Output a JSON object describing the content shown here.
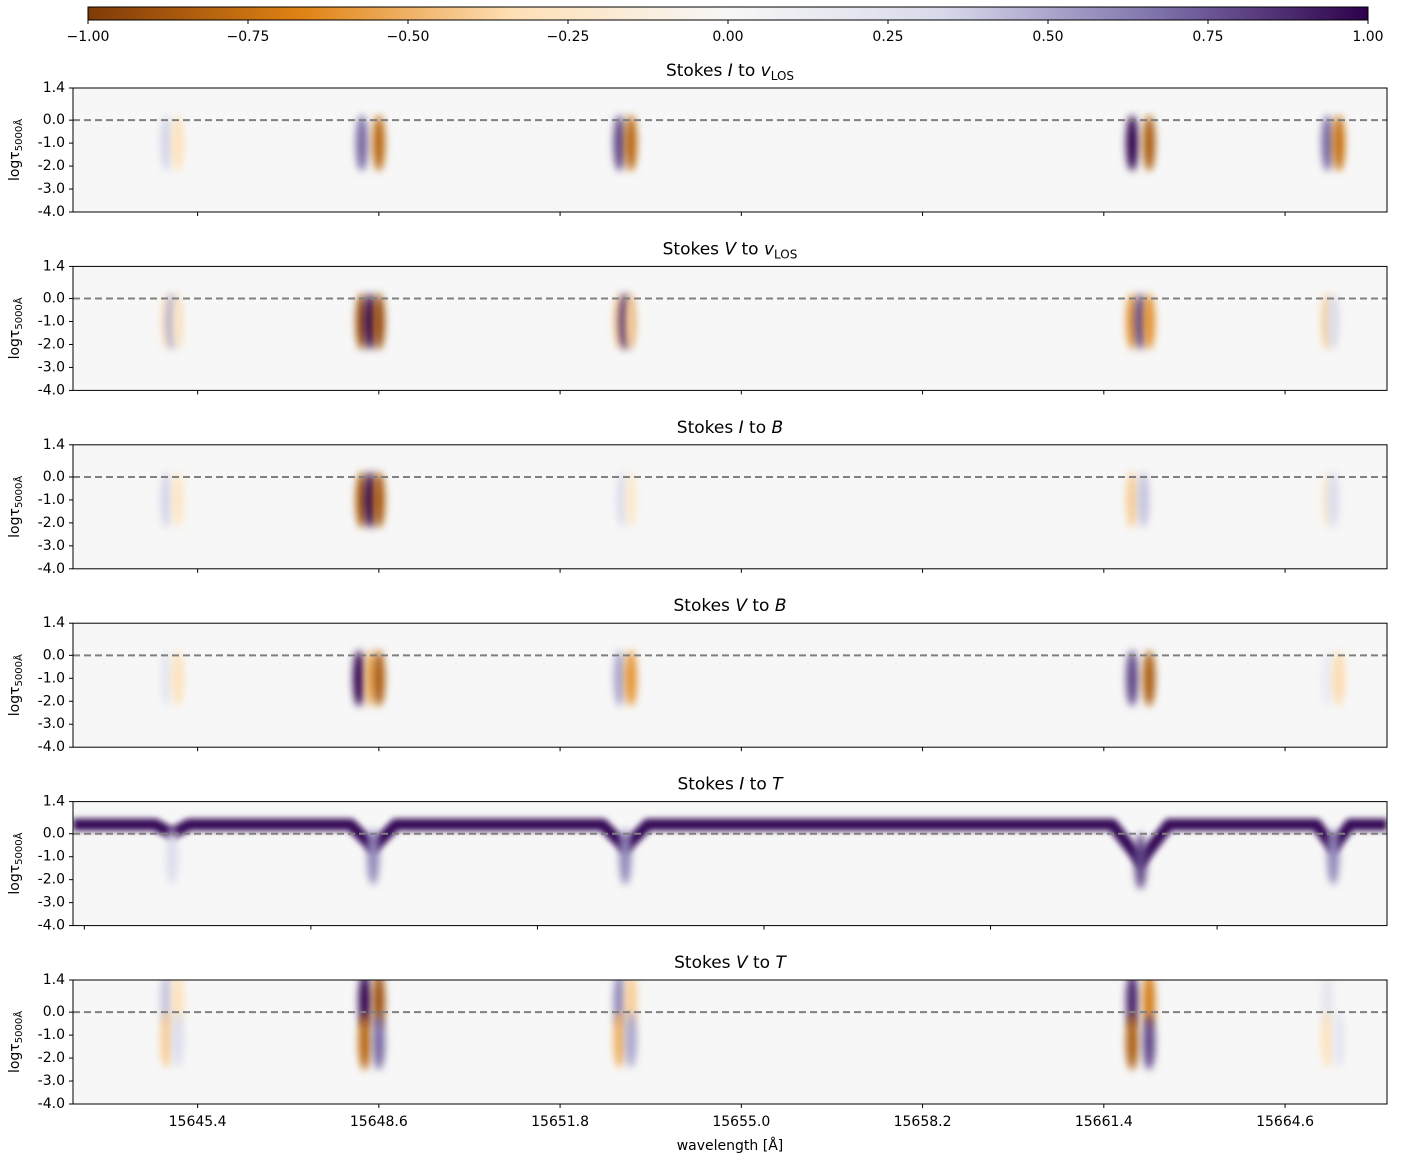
{
  "chart_data": [
    {
      "type": "colorbar",
      "zlim": [
        -1,
        1
      ],
      "colors": [
        "#7f3b08",
        "#e08214",
        "#fee0b6",
        "#f7f7f7",
        "#d8daeb",
        "#8073ac",
        "#2d004b"
      ],
      "ticks": [
        {
          "value": -1,
          "label": "−1.00"
        },
        {
          "value": -0.75,
          "label": "−0.75"
        },
        {
          "value": -0.5,
          "label": "−0.50"
        },
        {
          "value": -0.25,
          "label": "−0.25"
        },
        {
          "value": 0,
          "label": "0.00"
        },
        {
          "value": 0.25,
          "label": "0.25"
        },
        {
          "value": 0.5,
          "label": "0.50"
        },
        {
          "value": 0.75,
          "label": "0.75"
        },
        {
          "value": 1,
          "label": "1.00"
        }
      ]
    },
    {
      "type": "heatmap",
      "title_parts": [
        "Stokes ",
        "I",
        " to ",
        "v",
        "LOS"
      ],
      "ylabel_parts": [
        "log",
        "τ",
        "5000Å"
      ],
      "xlim": [
        15643.2,
        15666.4
      ],
      "ylim": [
        -4,
        1.4
      ],
      "hline": 0,
      "xticks": [
        15645.4,
        15648.6,
        15651.8,
        15655,
        15658.2,
        15661.4,
        15664.6
      ],
      "yticks": [
        1.4,
        {
          "value": 0,
          "label": "0.0"
        },
        {
          "value": -1,
          "label": "-1.0"
        },
        {
          "value": -2,
          "label": "-2.0"
        },
        {
          "value": -3,
          "label": "-3.0"
        },
        {
          "value": -4,
          "label": "-4.0"
        }
      ],
      "blobs": [
        {
          "x": 15644.85,
          "y": -1,
          "value": 0.35
        },
        {
          "x": 15645.05,
          "y": -1,
          "value": -0.3
        },
        {
          "x": 15648.3,
          "y": -1,
          "value": 0.7
        },
        {
          "x": 15648.6,
          "y": -1,
          "value": -0.8
        },
        {
          "x": 15652.85,
          "y": -1,
          "value": 0.8
        },
        {
          "x": 15653.05,
          "y": -1,
          "value": -0.8
        },
        {
          "x": 15661.9,
          "y": -1,
          "value": 1
        },
        {
          "x": 15662.2,
          "y": -1,
          "value": -0.85
        },
        {
          "x": 15665.35,
          "y": -1,
          "value": 0.7
        },
        {
          "x": 15665.55,
          "y": -1,
          "value": -0.75
        }
      ]
    },
    {
      "type": "heatmap",
      "title_parts": [
        "Stokes ",
        "V",
        " to ",
        "v",
        "LOS"
      ],
      "ylabel_parts": [
        "log",
        "τ",
        "5000Å"
      ],
      "xlim": [
        15643.2,
        15666.4
      ],
      "ylim": [
        -4,
        1.4
      ],
      "hline": 0,
      "xticks": [
        15645.4,
        15648.6,
        15651.8,
        15655,
        15658.2,
        15661.4,
        15664.6
      ],
      "yticks": [
        1.4,
        {
          "value": 0,
          "label": "0.0"
        },
        {
          "value": -1,
          "label": "-1.0"
        },
        {
          "value": -2,
          "label": "-2.0"
        },
        {
          "value": -3,
          "label": "-3.0"
        },
        {
          "value": -4,
          "label": "-4.0"
        }
      ],
      "blobs": [
        {
          "x": 15644.85,
          "y": -1,
          "value": -0.25
        },
        {
          "x": 15644.95,
          "y": -1,
          "value": 0.5
        },
        {
          "x": 15645.05,
          "y": -1,
          "value": -0.25
        },
        {
          "x": 15648.3,
          "y": -1,
          "value": -0.9
        },
        {
          "x": 15648.45,
          "y": -1,
          "value": 1
        },
        {
          "x": 15648.6,
          "y": -1,
          "value": -0.9
        },
        {
          "x": 15652.85,
          "y": -1,
          "value": -0.4
        },
        {
          "x": 15652.95,
          "y": -1,
          "value": 0.9
        },
        {
          "x": 15653.05,
          "y": -1,
          "value": -0.4
        },
        {
          "x": 15661.9,
          "y": -1,
          "value": -0.6
        },
        {
          "x": 15662.05,
          "y": -1,
          "value": 0.8
        },
        {
          "x": 15662.2,
          "y": -1,
          "value": -0.6
        },
        {
          "x": 15665.35,
          "y": -1,
          "value": -0.4
        },
        {
          "x": 15665.45,
          "y": -1,
          "value": 0.3
        }
      ]
    },
    {
      "type": "heatmap",
      "title_parts": [
        "Stokes ",
        "I",
        " to ",
        "B"
      ],
      "ylabel_parts": [
        "log",
        "τ",
        "5000Å"
      ],
      "xlim": [
        15643.2,
        15666.4
      ],
      "ylim": [
        -4,
        1.4
      ],
      "hline": 0,
      "xticks": [
        15645.4,
        15648.6,
        15651.8,
        15655,
        15658.2,
        15661.4,
        15664.6
      ],
      "yticks": [
        1.4,
        {
          "value": 0,
          "label": "0.0"
        },
        {
          "value": -1,
          "label": "-1.0"
        },
        {
          "value": -2,
          "label": "-2.0"
        },
        {
          "value": -3,
          "label": "-3.0"
        },
        {
          "value": -4,
          "label": "-4.0"
        }
      ],
      "blobs": [
        {
          "x": 15644.85,
          "y": -1,
          "value": 0.35
        },
        {
          "x": 15645.05,
          "y": -1,
          "value": -0.25
        },
        {
          "x": 15648.3,
          "y": -1,
          "value": -0.85
        },
        {
          "x": 15648.45,
          "y": -1,
          "value": 1
        },
        {
          "x": 15648.6,
          "y": -1,
          "value": -0.85
        },
        {
          "x": 15652.9,
          "y": -1,
          "value": 0.3
        },
        {
          "x": 15653.05,
          "y": -1,
          "value": -0.2
        },
        {
          "x": 15661.9,
          "y": -1,
          "value": -0.4
        },
        {
          "x": 15662.1,
          "y": -1,
          "value": 0.4
        },
        {
          "x": 15665.35,
          "y": -1,
          "value": -0.2
        },
        {
          "x": 15665.45,
          "y": -1,
          "value": 0.3
        }
      ]
    },
    {
      "type": "heatmap",
      "title_parts": [
        "Stokes ",
        "V",
        " to ",
        "B"
      ],
      "ylabel_parts": [
        "log",
        "τ",
        "5000Å"
      ],
      "xlim": [
        15643.2,
        15666.4
      ],
      "ylim": [
        -4,
        1.4
      ],
      "hline": 0,
      "xticks": [
        15645.4,
        15648.6,
        15651.8,
        15655,
        15658.2,
        15661.4,
        15664.6
      ],
      "yticks": [
        1.4,
        {
          "value": 0,
          "label": "0.0"
        },
        {
          "value": -1,
          "label": "-1.0"
        },
        {
          "value": -2,
          "label": "-2.0"
        },
        {
          "value": -3,
          "label": "-3.0"
        },
        {
          "value": -4,
          "label": "-4.0"
        }
      ],
      "blobs": [
        {
          "x": 15644.85,
          "y": -1,
          "value": 0.2
        },
        {
          "x": 15645.05,
          "y": -1,
          "value": -0.3
        },
        {
          "x": 15648.25,
          "y": -1,
          "value": 1
        },
        {
          "x": 15648.45,
          "y": -1,
          "value": -0.5
        },
        {
          "x": 15648.6,
          "y": -1,
          "value": -0.85
        },
        {
          "x": 15652.85,
          "y": -1,
          "value": 0.5
        },
        {
          "x": 15653.05,
          "y": -1,
          "value": -0.6
        },
        {
          "x": 15661.9,
          "y": -1,
          "value": 0.8
        },
        {
          "x": 15662.2,
          "y": -1,
          "value": -0.85
        },
        {
          "x": 15665.35,
          "y": -1,
          "value": 0.15
        },
        {
          "x": 15665.55,
          "y": -1,
          "value": -0.35
        }
      ]
    },
    {
      "type": "heatmap",
      "title_parts": [
        "Stokes ",
        "I",
        " to ",
        "T"
      ],
      "ylabel_parts": [
        "log",
        "τ",
        "5000Å"
      ],
      "xlim": [
        15643.2,
        15666.4
      ],
      "ylim": [
        -4,
        1.4
      ],
      "hline": 0,
      "xticks": [
        15643.4,
        15647.4,
        15651.4,
        15655.4,
        15659.4,
        15663.4
      ],
      "yticks": [
        1.4,
        {
          "value": 0,
          "label": "0.0"
        },
        {
          "value": -1,
          "label": "-1.0"
        },
        {
          "value": -2,
          "label": "-2.0"
        },
        {
          "value": -3,
          "label": "-3.0"
        },
        {
          "value": -4,
          "label": "-4.0"
        }
      ],
      "ridge": {
        "value": 0.95,
        "x": [
          15643.2,
          15644.65,
          15644.95,
          15645.25,
          15648.1,
          15648.5,
          15648.9,
          15652.55,
          15652.95,
          15653.35,
          15661.55,
          15662.05,
          15662.55,
          15665.15,
          15665.45,
          15665.75,
          15666.4
        ],
        "y": [
          0.4,
          0.4,
          0,
          0.4,
          0.4,
          -0.6,
          0.4,
          0.4,
          -0.6,
          0.4,
          0.4,
          -1.2,
          0.4,
          0.4,
          -0.6,
          0.4,
          0.4
        ]
      },
      "blobs": [
        {
          "x": 15644.95,
          "y": -1,
          "value": 0.3
        },
        {
          "x": 15648.5,
          "y": -1,
          "value": 0.6
        },
        {
          "x": 15652.95,
          "y": -1,
          "value": 0.6
        },
        {
          "x": 15662.05,
          "y": -1.2,
          "value": 0.8
        },
        {
          "x": 15665.45,
          "y": -1,
          "value": 0.6
        }
      ]
    },
    {
      "type": "heatmap",
      "title_parts": [
        "Stokes ",
        "V",
        " to ",
        "T"
      ],
      "ylabel_parts": [
        "log",
        "τ",
        "5000Å"
      ],
      "xlabel": "wavelength [Å]",
      "xlim": [
        15643.2,
        15666.4
      ],
      "ylim": [
        -4,
        1.4
      ],
      "hline": 0,
      "xticks": [
        15645.4,
        15648.6,
        15651.8,
        {
          "value": 15655,
          "label": "15655.0"
        },
        15658.2,
        15661.4,
        15664.6
      ],
      "yticks": [
        1.4,
        {
          "value": 0,
          "label": "0.0"
        },
        {
          "value": -1,
          "label": "-1.0"
        },
        {
          "value": -2,
          "label": "-2.0"
        },
        {
          "value": -3,
          "label": "-3.0"
        },
        {
          "value": -4,
          "label": "-4.0"
        }
      ],
      "blobs": [
        {
          "x": 15644.85,
          "y": 0.5,
          "value": 0.4
        },
        {
          "x": 15645.05,
          "y": 0.5,
          "value": -0.3
        },
        {
          "x": 15644.85,
          "y": -1.2,
          "value": -0.4
        },
        {
          "x": 15645.05,
          "y": -1.2,
          "value": 0.3
        },
        {
          "x": 15648.35,
          "y": 0.5,
          "value": 1
        },
        {
          "x": 15648.6,
          "y": 0.5,
          "value": -0.9
        },
        {
          "x": 15648.35,
          "y": -1.3,
          "value": -0.8
        },
        {
          "x": 15648.6,
          "y": -1.3,
          "value": 0.7
        },
        {
          "x": 15652.85,
          "y": 0.5,
          "value": 0.6
        },
        {
          "x": 15653.05,
          "y": 0.5,
          "value": -0.4
        },
        {
          "x": 15652.85,
          "y": -1.2,
          "value": -0.5
        },
        {
          "x": 15653.05,
          "y": -1.2,
          "value": 0.5
        },
        {
          "x": 15661.9,
          "y": 0.5,
          "value": 0.9
        },
        {
          "x": 15662.2,
          "y": 0.5,
          "value": -0.7
        },
        {
          "x": 15661.9,
          "y": -1.3,
          "value": -0.85
        },
        {
          "x": 15662.2,
          "y": -1.3,
          "value": 0.8
        },
        {
          "x": 15665.35,
          "y": 0.5,
          "value": 0.2
        },
        {
          "x": 15665.35,
          "y": -1.2,
          "value": -0.3
        },
        {
          "x": 15665.55,
          "y": -1.2,
          "value": 0.2
        }
      ]
    }
  ]
}
